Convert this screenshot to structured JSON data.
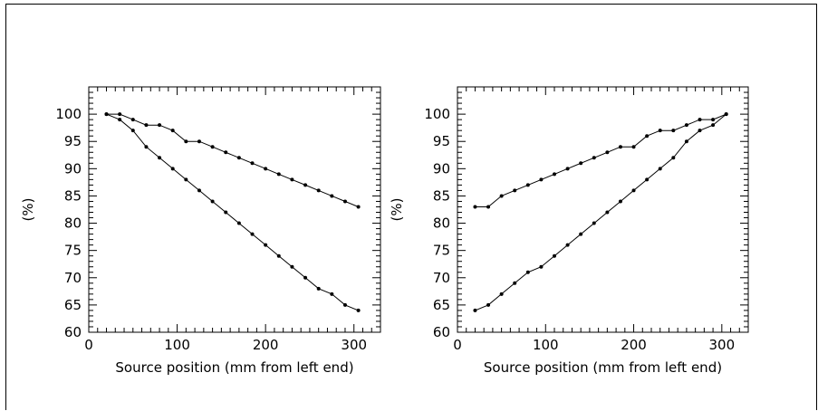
{
  "chart_data": [
    {
      "type": "line",
      "xlabel": "Source position (mm from left end)",
      "ylabel": "(%)",
      "xlim": [
        0,
        330
      ],
      "ylim": [
        60,
        105
      ],
      "x_ticks": [
        0,
        100,
        200,
        300
      ],
      "y_ticks": [
        60,
        65,
        70,
        75,
        80,
        85,
        90,
        95,
        100
      ],
      "grid": false,
      "series": [
        {
          "x": [
            20,
            35,
            50,
            65,
            80,
            95,
            110,
            125,
            140,
            155,
            170,
            185,
            200,
            215,
            230,
            245,
            260,
            275,
            290,
            305
          ],
          "y": [
            100,
            100,
            99,
            98,
            98,
            97,
            95,
            95,
            94,
            93,
            92,
            91,
            90,
            89,
            88,
            87,
            86,
            85,
            84,
            83
          ]
        },
        {
          "x": [
            20,
            35,
            50,
            65,
            80,
            95,
            110,
            125,
            140,
            155,
            170,
            185,
            200,
            215,
            230,
            245,
            260,
            275,
            290,
            305
          ],
          "y": [
            100,
            99,
            97,
            94,
            92,
            90,
            88,
            86,
            84,
            82,
            80,
            78,
            76,
            74,
            72,
            70,
            68,
            67,
            65,
            64
          ]
        }
      ]
    },
    {
      "type": "line",
      "xlabel": "Source position (mm from left end)",
      "ylabel": "(%)",
      "xlim": [
        0,
        330
      ],
      "ylim": [
        60,
        105
      ],
      "x_ticks": [
        0,
        100,
        200,
        300
      ],
      "y_ticks": [
        60,
        65,
        70,
        75,
        80,
        85,
        90,
        95,
        100
      ],
      "grid": false,
      "series": [
        {
          "x": [
            20,
            35,
            50,
            65,
            80,
            95,
            110,
            125,
            140,
            155,
            170,
            185,
            200,
            215,
            230,
            245,
            260,
            275,
            290,
            305
          ],
          "y": [
            83,
            83,
            85,
            86,
            87,
            88,
            89,
            90,
            91,
            92,
            93,
            94,
            94,
            96,
            97,
            97,
            98,
            99,
            99,
            100
          ]
        },
        {
          "x": [
            20,
            35,
            50,
            65,
            80,
            95,
            110,
            125,
            140,
            155,
            170,
            185,
            200,
            215,
            230,
            245,
            260,
            275,
            290,
            305
          ],
          "y": [
            64,
            65,
            67,
            69,
            71,
            72,
            74,
            76,
            78,
            80,
            82,
            84,
            86,
            88,
            90,
            92,
            95,
            97,
            98,
            100
          ]
        }
      ]
    }
  ]
}
